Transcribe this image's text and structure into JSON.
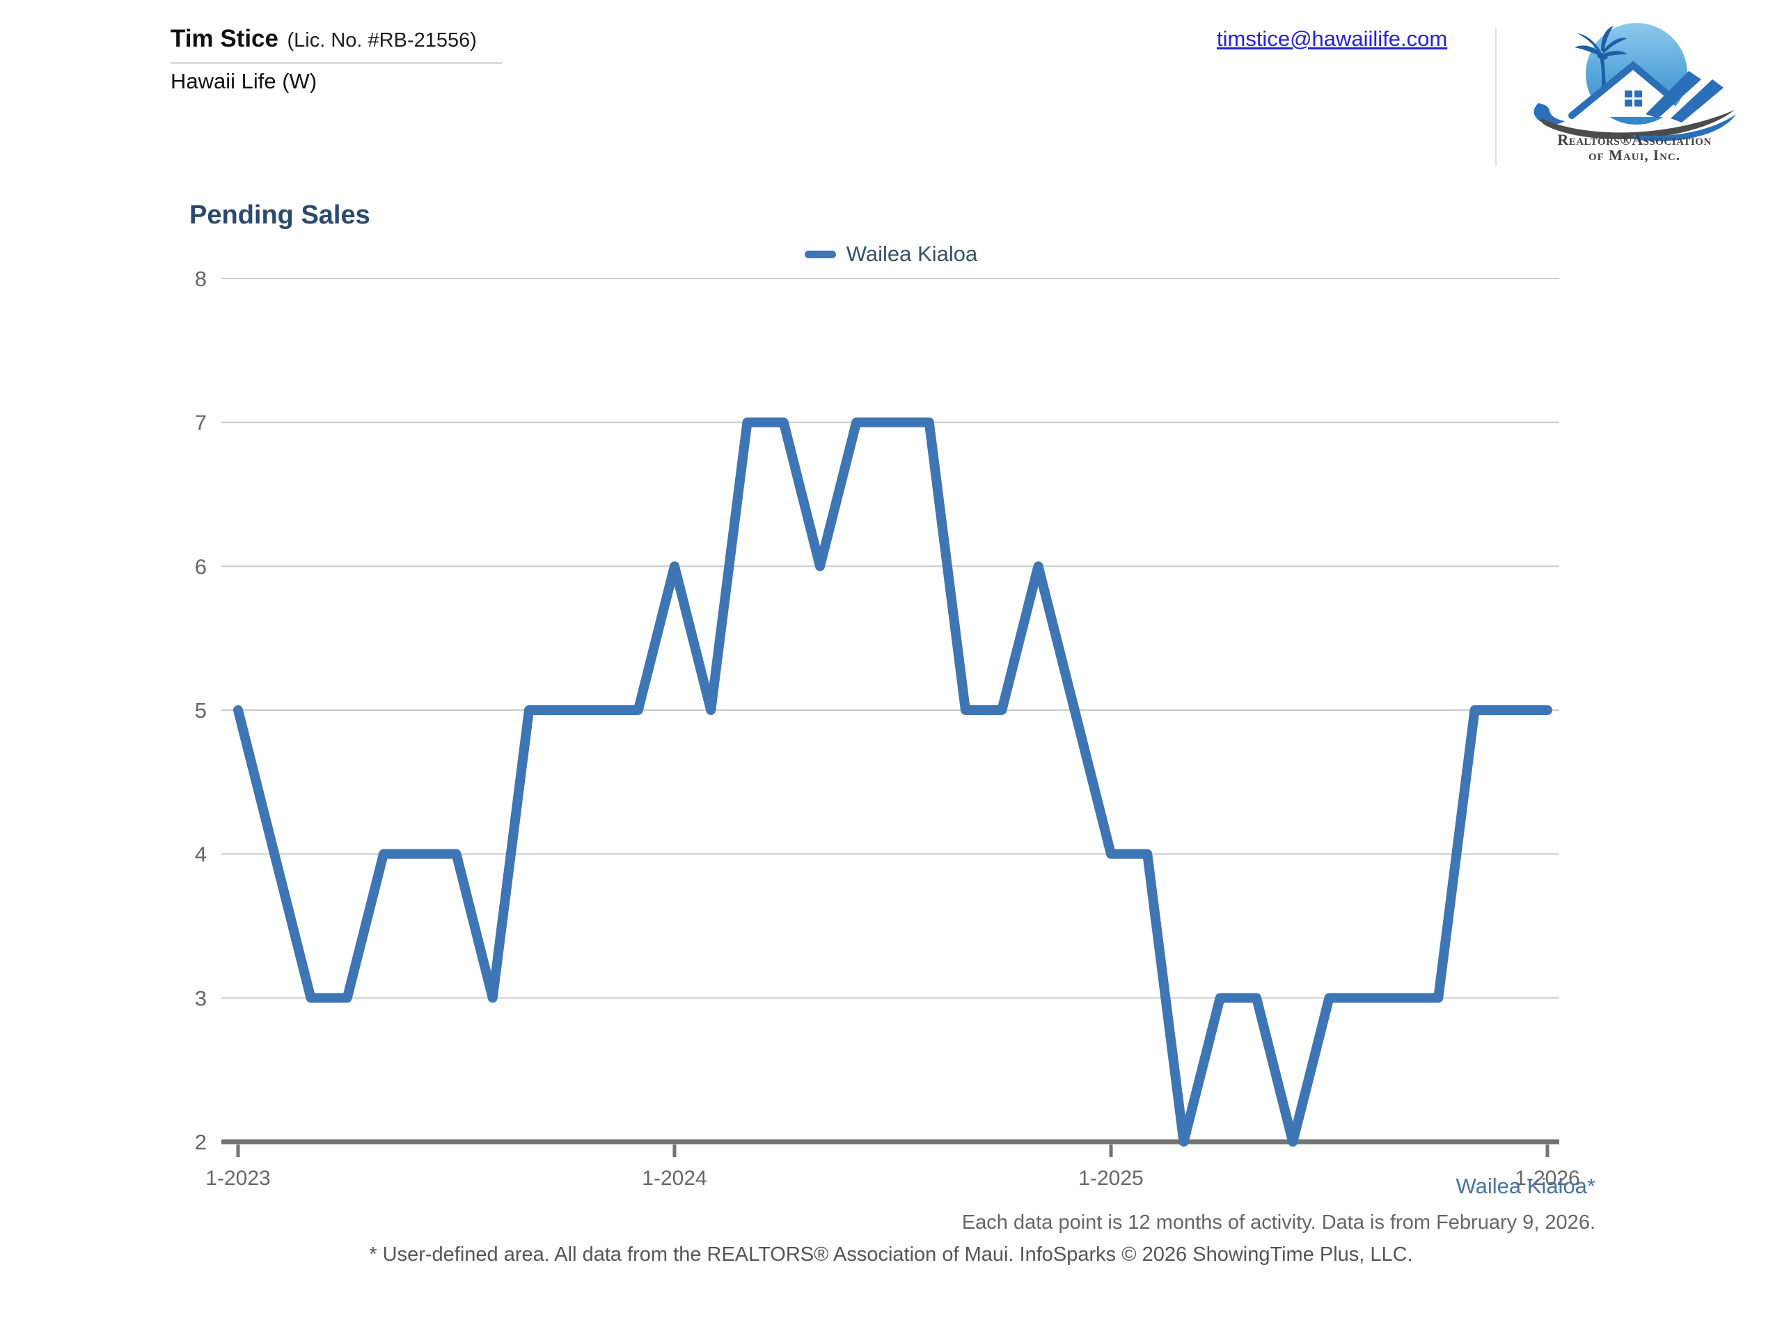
{
  "header": {
    "agent_name": "Tim Stice",
    "license": "(Lic. No. #RB-21556)",
    "company": "Hawaii Life (W)",
    "email": "timstice@hawaiilife.com",
    "logo": {
      "line1": "Realtors®Association",
      "line2": "of Maui, Inc."
    }
  },
  "chart": {
    "title": "Pending Sales",
    "legend_label": "Wailea Kialoa"
  },
  "chart_data": {
    "type": "line",
    "title": "Pending Sales",
    "interval": "monthly",
    "x": [
      "1-2023",
      "2-2023",
      "3-2023",
      "4-2023",
      "5-2023",
      "6-2023",
      "7-2023",
      "8-2023",
      "9-2023",
      "10-2023",
      "11-2023",
      "12-2023",
      "1-2024",
      "2-2024",
      "3-2024",
      "4-2024",
      "5-2024",
      "6-2024",
      "7-2024",
      "8-2024",
      "9-2024",
      "10-2024",
      "11-2024",
      "12-2024",
      "1-2025",
      "2-2025",
      "3-2025",
      "4-2025",
      "5-2025",
      "6-2025",
      "7-2025",
      "8-2025",
      "9-2025",
      "10-2025",
      "11-2025",
      "12-2025",
      "1-2026"
    ],
    "series": [
      {
        "name": "Wailea Kialoa",
        "color": "#3e75b5",
        "values": [
          5,
          4,
          3,
          3,
          4,
          4,
          4,
          3,
          5,
          5,
          5,
          5,
          6,
          5,
          7,
          7,
          6,
          7,
          7,
          7,
          5,
          5,
          6,
          5,
          4,
          4,
          2,
          3,
          3,
          2,
          3,
          3,
          3,
          3,
          5,
          5,
          5
        ]
      }
    ],
    "ylim": [
      2,
      8
    ],
    "y_ticks": [
      8,
      7,
      6,
      5,
      4,
      3,
      2
    ],
    "x_tick_labels": [
      "1-2023",
      "1-2024",
      "1-2025",
      "1-2026"
    ],
    "x_tick_indices": [
      0,
      12,
      24,
      36
    ],
    "grid": "horizontal",
    "legend_position": "top-center",
    "colors": {
      "line": "#3e75b5",
      "gridline": "#c9c9c9",
      "axis": "#737373",
      "tick_text": "#666666"
    }
  },
  "footer": {
    "series_note": "Wailea Kialoa*",
    "info": "Each data point is 12 months of activity. Data is from February 9, 2026.",
    "disclaimer": "* User-defined area. All data from the REALTORS® Association of Maui. InfoSparks © 2026 ShowingTime Plus, LLC."
  }
}
